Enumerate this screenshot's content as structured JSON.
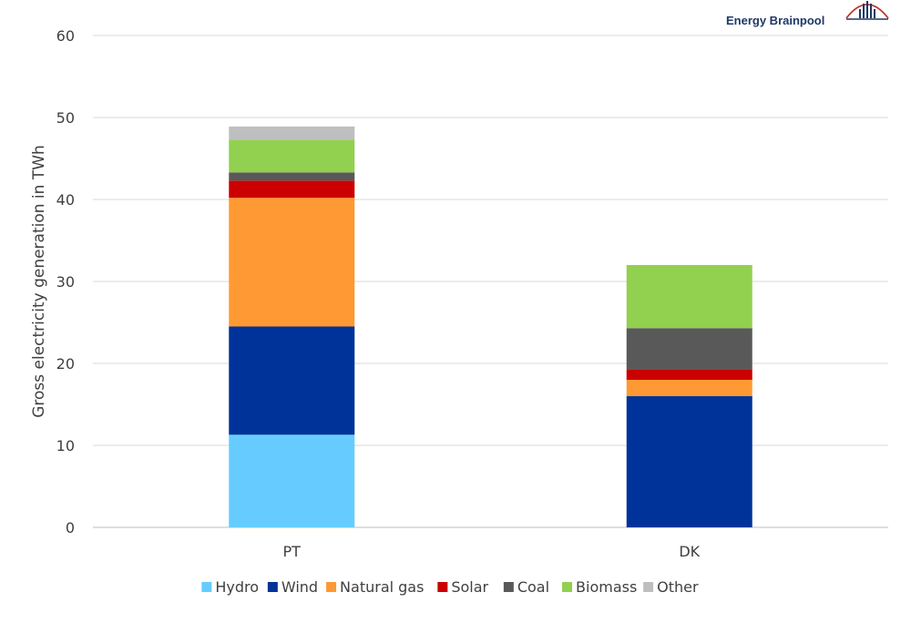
{
  "logo": {
    "text": "Energy Brainpool"
  },
  "chart_data": {
    "type": "bar",
    "stacked": true,
    "categories": [
      "PT",
      "DK"
    ],
    "ylabel": "Gross electricity generation in TWh",
    "xlabel": "",
    "ylim": [
      0,
      60
    ],
    "yticks": [
      0,
      10,
      20,
      30,
      40,
      50,
      60
    ],
    "grid": true,
    "legend_position": "bottom",
    "series": [
      {
        "name": "Hydro",
        "color": "#66ccff",
        "values": [
          11.3,
          0.0
        ]
      },
      {
        "name": "Wind",
        "color": "#003399",
        "values": [
          13.2,
          16.0
        ]
      },
      {
        "name": "Natural gas",
        "color": "#ff9933",
        "values": [
          15.7,
          2.0
        ]
      },
      {
        "name": "Solar",
        "color": "#cc0000",
        "values": [
          2.1,
          1.3
        ]
      },
      {
        "name": "Coal",
        "color": "#595959",
        "values": [
          1.0,
          5.0
        ]
      },
      {
        "name": "Biomass",
        "color": "#92d050",
        "values": [
          4.0,
          7.7
        ]
      },
      {
        "name": "Other",
        "color": "#bfbfbf",
        "values": [
          1.6,
          0.0
        ]
      }
    ]
  }
}
